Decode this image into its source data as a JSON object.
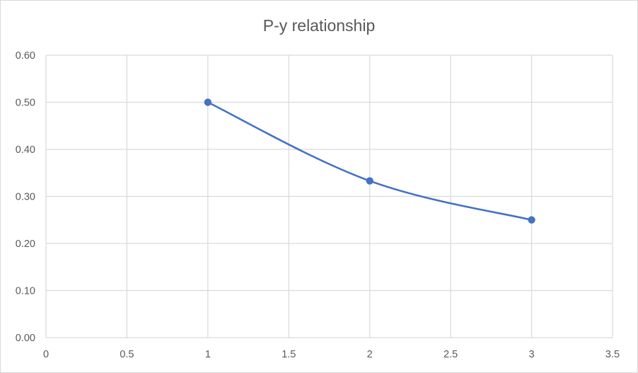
{
  "chart_data": {
    "type": "scatter",
    "title": "P-y  relationship",
    "xlabel": "",
    "ylabel": "",
    "xlim": [
      0,
      3.5
    ],
    "ylim": [
      0,
      0.6
    ],
    "xticks": [
      0,
      0.5,
      1,
      1.5,
      2,
      2.5,
      3,
      3.5
    ],
    "xtick_labels": [
      "0",
      "0.5",
      "1",
      "1.5",
      "2",
      "2.5",
      "3",
      "3.5"
    ],
    "yticks": [
      0,
      0.1,
      0.2,
      0.3,
      0.4,
      0.5,
      0.6
    ],
    "ytick_labels": [
      "0.00",
      "0.10",
      "0.20",
      "0.30",
      "0.40",
      "0.50",
      "0.60"
    ],
    "grid": true,
    "legend": "none",
    "series": [
      {
        "name": "Series1",
        "color": "#4472c4",
        "line": "smooth",
        "markers": true,
        "x": [
          1,
          2,
          3
        ],
        "y": [
          0.5,
          0.333,
          0.25
        ]
      }
    ]
  }
}
